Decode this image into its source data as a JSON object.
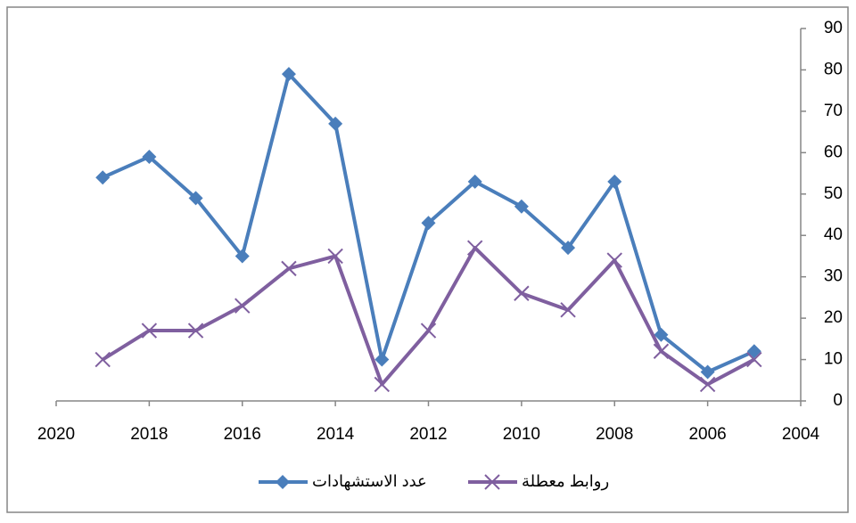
{
  "chart_data": {
    "type": "line",
    "x": [
      2019,
      2018,
      2017,
      2016,
      2015,
      2014,
      2013,
      2012,
      2011,
      2010,
      2009,
      2008,
      2007,
      2006,
      2005
    ],
    "series": [
      {
        "name": "عدد الاستشهادات",
        "color": "#4a7ebb",
        "marker": "diamond",
        "values": [
          54,
          59,
          49,
          35,
          79,
          67,
          10,
          43,
          53,
          47,
          37,
          53,
          16,
          7,
          12
        ]
      },
      {
        "name": "روابط معطلة",
        "color": "#7f5f9f",
        "marker": "x",
        "values": [
          10,
          17,
          17,
          23,
          32,
          35,
          4,
          17,
          37,
          26,
          22,
          34,
          12,
          4,
          10
        ]
      }
    ],
    "xlim": [
      2020,
      2004
    ],
    "xticks": [
      2020,
      2018,
      2016,
      2014,
      2012,
      2010,
      2008,
      2006,
      2004
    ],
    "ylim": [
      0,
      90
    ],
    "yticks": [
      0,
      10,
      20,
      30,
      40,
      50,
      60,
      70,
      80,
      90
    ],
    "y_axis_position": "right",
    "grid": false,
    "legend": "bottom"
  }
}
